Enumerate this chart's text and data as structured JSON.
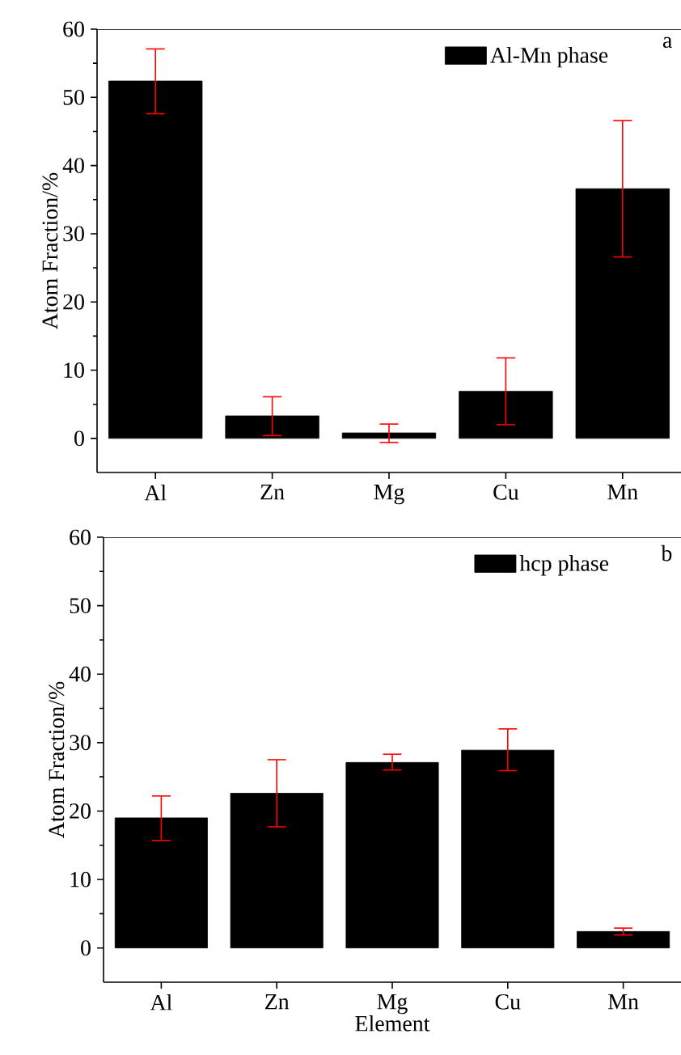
{
  "chart_data": [
    {
      "type": "bar",
      "ylabel": "Atom Fraction/%",
      "categories": [
        "Al",
        "Zn",
        "Mg",
        "Cu",
        "Mn"
      ],
      "series": [
        {
          "name": "Al-Mn phase",
          "color": "#000000",
          "values": [
            52.4,
            3.3,
            0.8,
            6.9,
            36.6
          ],
          "errors": [
            [
              47.6,
              57.1
            ],
            [
              0.4,
              6.1
            ],
            [
              -0.6,
              2.1
            ],
            [
              2.0,
              11.8
            ],
            [
              26.6,
              46.6
            ]
          ]
        }
      ],
      "ylim": [
        -5,
        60
      ],
      "yticks": [
        0,
        10,
        20,
        30,
        40,
        50,
        60
      ],
      "legend": "top right",
      "annotations": [
        "a"
      ]
    },
    {
      "type": "bar",
      "ylabel": "Atom Fraction/%",
      "xlabel": "Element",
      "categories": [
        "Al",
        "Zn",
        "Mg",
        "Cu",
        "Mn"
      ],
      "series": [
        {
          "name": "hcp phase",
          "color": "#000000",
          "values": [
            19.0,
            22.6,
            27.1,
            28.9,
            2.4
          ],
          "errors": [
            [
              15.7,
              22.2
            ],
            [
              17.7,
              27.5
            ],
            [
              26.0,
              28.3
            ],
            [
              25.9,
              32.0
            ],
            [
              1.9,
              2.9
            ]
          ]
        }
      ],
      "ylim": [
        -5,
        60
      ],
      "yticks": [
        0,
        10,
        20,
        30,
        40,
        50,
        60
      ],
      "legend": "top right",
      "annotations": [
        "b"
      ]
    }
  ]
}
